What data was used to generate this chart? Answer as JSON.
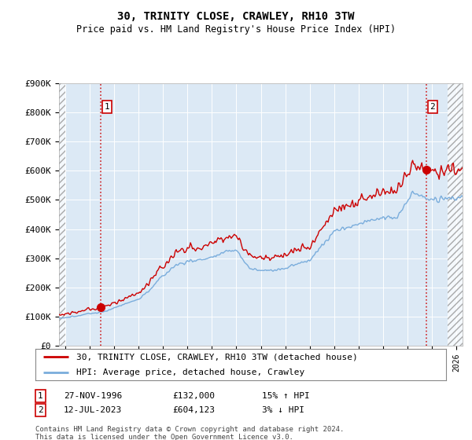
{
  "title": "30, TRINITY CLOSE, CRAWLEY, RH10 3TW",
  "subtitle": "Price paid vs. HM Land Registry's House Price Index (HPI)",
  "ylim": [
    0,
    900000
  ],
  "yticks": [
    0,
    100000,
    200000,
    300000,
    400000,
    500000,
    600000,
    700000,
    800000,
    900000
  ],
  "ytick_labels": [
    "£0",
    "£100K",
    "£200K",
    "£300K",
    "£400K",
    "£500K",
    "£600K",
    "£700K",
    "£800K",
    "£900K"
  ],
  "hpi_color": "#7aaddc",
  "price_color": "#cc0000",
  "background_color": "#ffffff",
  "plot_bg_color": "#dce9f5",
  "transaction1_date": "27-NOV-1996",
  "transaction1_price": 132000,
  "transaction1_price_str": "£132,000",
  "transaction1_hpi": "15% ↑ HPI",
  "transaction2_date": "12-JUL-2023",
  "transaction2_price": 604123,
  "transaction2_price_str": "£604,123",
  "transaction2_hpi": "3% ↓ HPI",
  "legend_line1": "30, TRINITY CLOSE, CRAWLEY, RH10 3TW (detached house)",
  "legend_line2": "HPI: Average price, detached house, Crawley",
  "footnote1": "Contains HM Land Registry data © Crown copyright and database right 2024.",
  "footnote2": "This data is licensed under the Open Government Licence v3.0.",
  "xlim_start": 1993.5,
  "xlim_end": 2026.5,
  "hatch_left_end": 1994.0,
  "hatch_right_start": 2025.25,
  "t1_year": 1996.917,
  "t2_year": 2023.542
}
